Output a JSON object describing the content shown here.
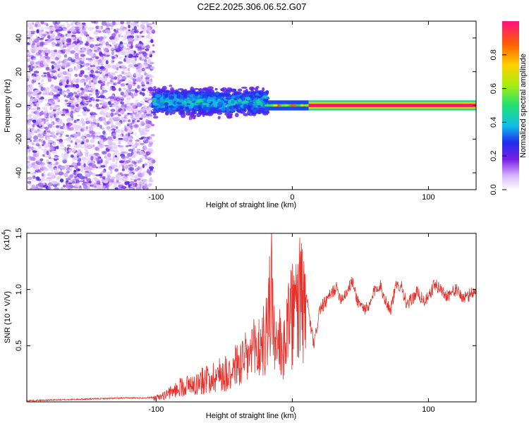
{
  "title": "C2E2.2025.306.06.52.G07",
  "chart_data": [
    {
      "type": "heatmap",
      "name": "spectrogram",
      "xlabel": "Height of straight line (km)",
      "ylabel": "Frequency (Hz)",
      "xlim": [
        -195,
        135
      ],
      "ylim": [
        -50,
        50
      ],
      "xticks": [
        -100,
        0,
        100
      ],
      "xtick_labels": [
        "-100",
        "0",
        "100"
      ],
      "yticks": [
        -40,
        -20,
        0,
        20,
        40
      ],
      "ytick_labels": [
        "-40",
        "-20",
        "0",
        "20",
        "40"
      ],
      "description_regions": [
        {
          "x_range": [
            -195,
            -102
          ],
          "freq_range": [
            -50,
            50
          ],
          "amplitude": [
            0.05,
            0.25
          ],
          "pattern": "scattered noise"
        },
        {
          "x_range": [
            -102,
            -18
          ],
          "freq_range": [
            -8,
            12
          ],
          "amplitude": [
            0.15,
            0.5
          ],
          "pattern": "clustered near 0 Hz"
        },
        {
          "x_range": [
            -18,
            12
          ],
          "freq_range": [
            -3,
            3
          ],
          "amplitude": [
            0.3,
            0.9
          ],
          "pattern": "narrow band at 0 Hz"
        },
        {
          "x_range": [
            12,
            135
          ],
          "freq_range": [
            -1,
            1
          ],
          "amplitude": [
            0.9,
            1.0
          ],
          "pattern": "steady tone at 0 Hz"
        }
      ],
      "colorbar": {
        "label": "Normalized spectral amplitude",
        "range": [
          0,
          1
        ],
        "ticks": [
          0.0,
          0.2,
          0.4,
          0.6,
          0.8
        ],
        "tick_labels": [
          "0.0",
          "0.2",
          "0.4",
          "0.6",
          "0.8"
        ]
      }
    },
    {
      "type": "line",
      "name": "snr",
      "xlabel": "Height of straight line (km)",
      "ylabel": "SNR (10 * V/V)",
      "scale_label": "(x10",
      "scale_exponent": "4",
      "scale_close": ")",
      "xlim": [
        -195,
        135
      ],
      "ylim": [
        0,
        1.5
      ],
      "xticks": [
        -100,
        0,
        100
      ],
      "xtick_labels": [
        "-100",
        "0",
        "100"
      ],
      "yticks": [
        0.5,
        1.0,
        1.5
      ],
      "ytick_labels": [
        "0.5",
        "1.0",
        "1.5"
      ],
      "color": "#e8302a",
      "series": [
        {
          "name": "SNR",
          "x": [
            -195,
            -180,
            -165,
            -150,
            -135,
            -120,
            -110,
            -102,
            -95,
            -88,
            -82,
            -76,
            -70,
            -64,
            -58,
            -52,
            -46,
            -40,
            -34,
            -28,
            -22,
            -18,
            -15,
            -13,
            -11,
            -9,
            -7,
            -5,
            -2,
            2,
            6,
            9,
            11,
            13,
            16,
            20,
            24,
            28,
            32,
            36,
            40,
            44,
            48,
            52,
            56,
            60,
            64,
            68,
            72,
            76,
            80,
            84,
            88,
            92,
            96,
            100,
            104,
            108,
            112,
            116,
            120,
            124,
            128,
            132,
            135
          ],
          "y": [
            0.01,
            0.015,
            0.02,
            0.025,
            0.03,
            0.035,
            0.035,
            0.04,
            0.07,
            0.12,
            0.18,
            0.2,
            0.22,
            0.26,
            0.3,
            0.33,
            0.37,
            0.44,
            0.5,
            0.6,
            0.68,
            0.82,
            1.52,
            0.62,
            0.55,
            0.68,
            0.6,
            0.85,
            0.95,
            1.05,
            1.2,
            1.02,
            0.9,
            0.7,
            0.5,
            0.82,
            0.88,
            0.95,
            1.02,
            0.92,
            0.98,
            1.07,
            0.9,
            0.84,
            0.82,
            0.98,
            1.05,
            0.92,
            0.82,
            1.02,
            1.05,
            0.85,
            0.92,
            0.98,
            0.9,
            0.92,
            1.04,
            1.02,
            0.95,
            0.96,
            1.0,
            0.94,
            0.92,
            0.98,
            0.98
          ]
        }
      ]
    }
  ]
}
